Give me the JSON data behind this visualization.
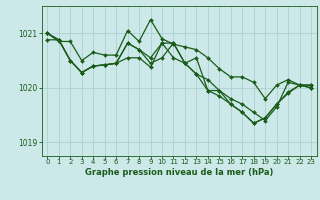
{
  "xlabel": "Graphe pression niveau de la mer (hPa)",
  "ylim": [
    1018.75,
    1021.5
  ],
  "xlim": [
    -0.5,
    23.5
  ],
  "yticks": [
    1019,
    1020,
    1021
  ],
  "xticks": [
    0,
    1,
    2,
    3,
    4,
    5,
    6,
    7,
    8,
    9,
    10,
    11,
    12,
    13,
    14,
    15,
    16,
    17,
    18,
    19,
    20,
    21,
    22,
    23
  ],
  "bg_color": "#cce8e8",
  "grid_color": "#a8cccc",
  "line_color": "#1a5c1a",
  "markersize": 2.0,
  "linewidth": 0.9,
  "series": [
    [
      1021.0,
      1020.85,
      1020.85,
      1020.5,
      1020.65,
      1020.6,
      1020.6,
      1021.05,
      1020.85,
      1021.25,
      1020.9,
      1020.8,
      1020.75,
      1020.7,
      1020.55,
      1020.35,
      1020.2,
      1020.2,
      1020.1,
      1019.8,
      1020.05,
      1020.15,
      1020.05,
      1020.05
    ],
    [
      1020.88,
      1020.88,
      1020.5,
      1020.28,
      1020.4,
      1020.42,
      1020.45,
      1020.55,
      1020.55,
      1020.38,
      1020.82,
      1020.82,
      1020.45,
      1020.55,
      1019.95,
      1019.95,
      1019.7,
      1019.55,
      1019.35,
      1019.45,
      1019.7,
      1019.92,
      1020.05,
      1020.0
    ],
    [
      1021.0,
      1020.88,
      1020.5,
      1020.28,
      1020.4,
      1020.42,
      1020.45,
      1020.82,
      1020.7,
      1020.55,
      1020.82,
      1020.55,
      1020.45,
      1020.25,
      1020.15,
      1019.95,
      1019.8,
      1019.7,
      1019.55,
      1019.4,
      1019.65,
      1020.1,
      1020.05,
      1020.05
    ],
    [
      1021.0,
      1020.88,
      1020.5,
      1020.28,
      1020.4,
      1020.42,
      1020.45,
      1020.82,
      1020.7,
      1020.45,
      1020.55,
      1020.82,
      1020.45,
      1020.25,
      1019.95,
      1019.85,
      1019.7,
      1019.55,
      1019.35,
      1019.45,
      1019.7,
      1019.9,
      1020.05,
      1020.0
    ]
  ]
}
